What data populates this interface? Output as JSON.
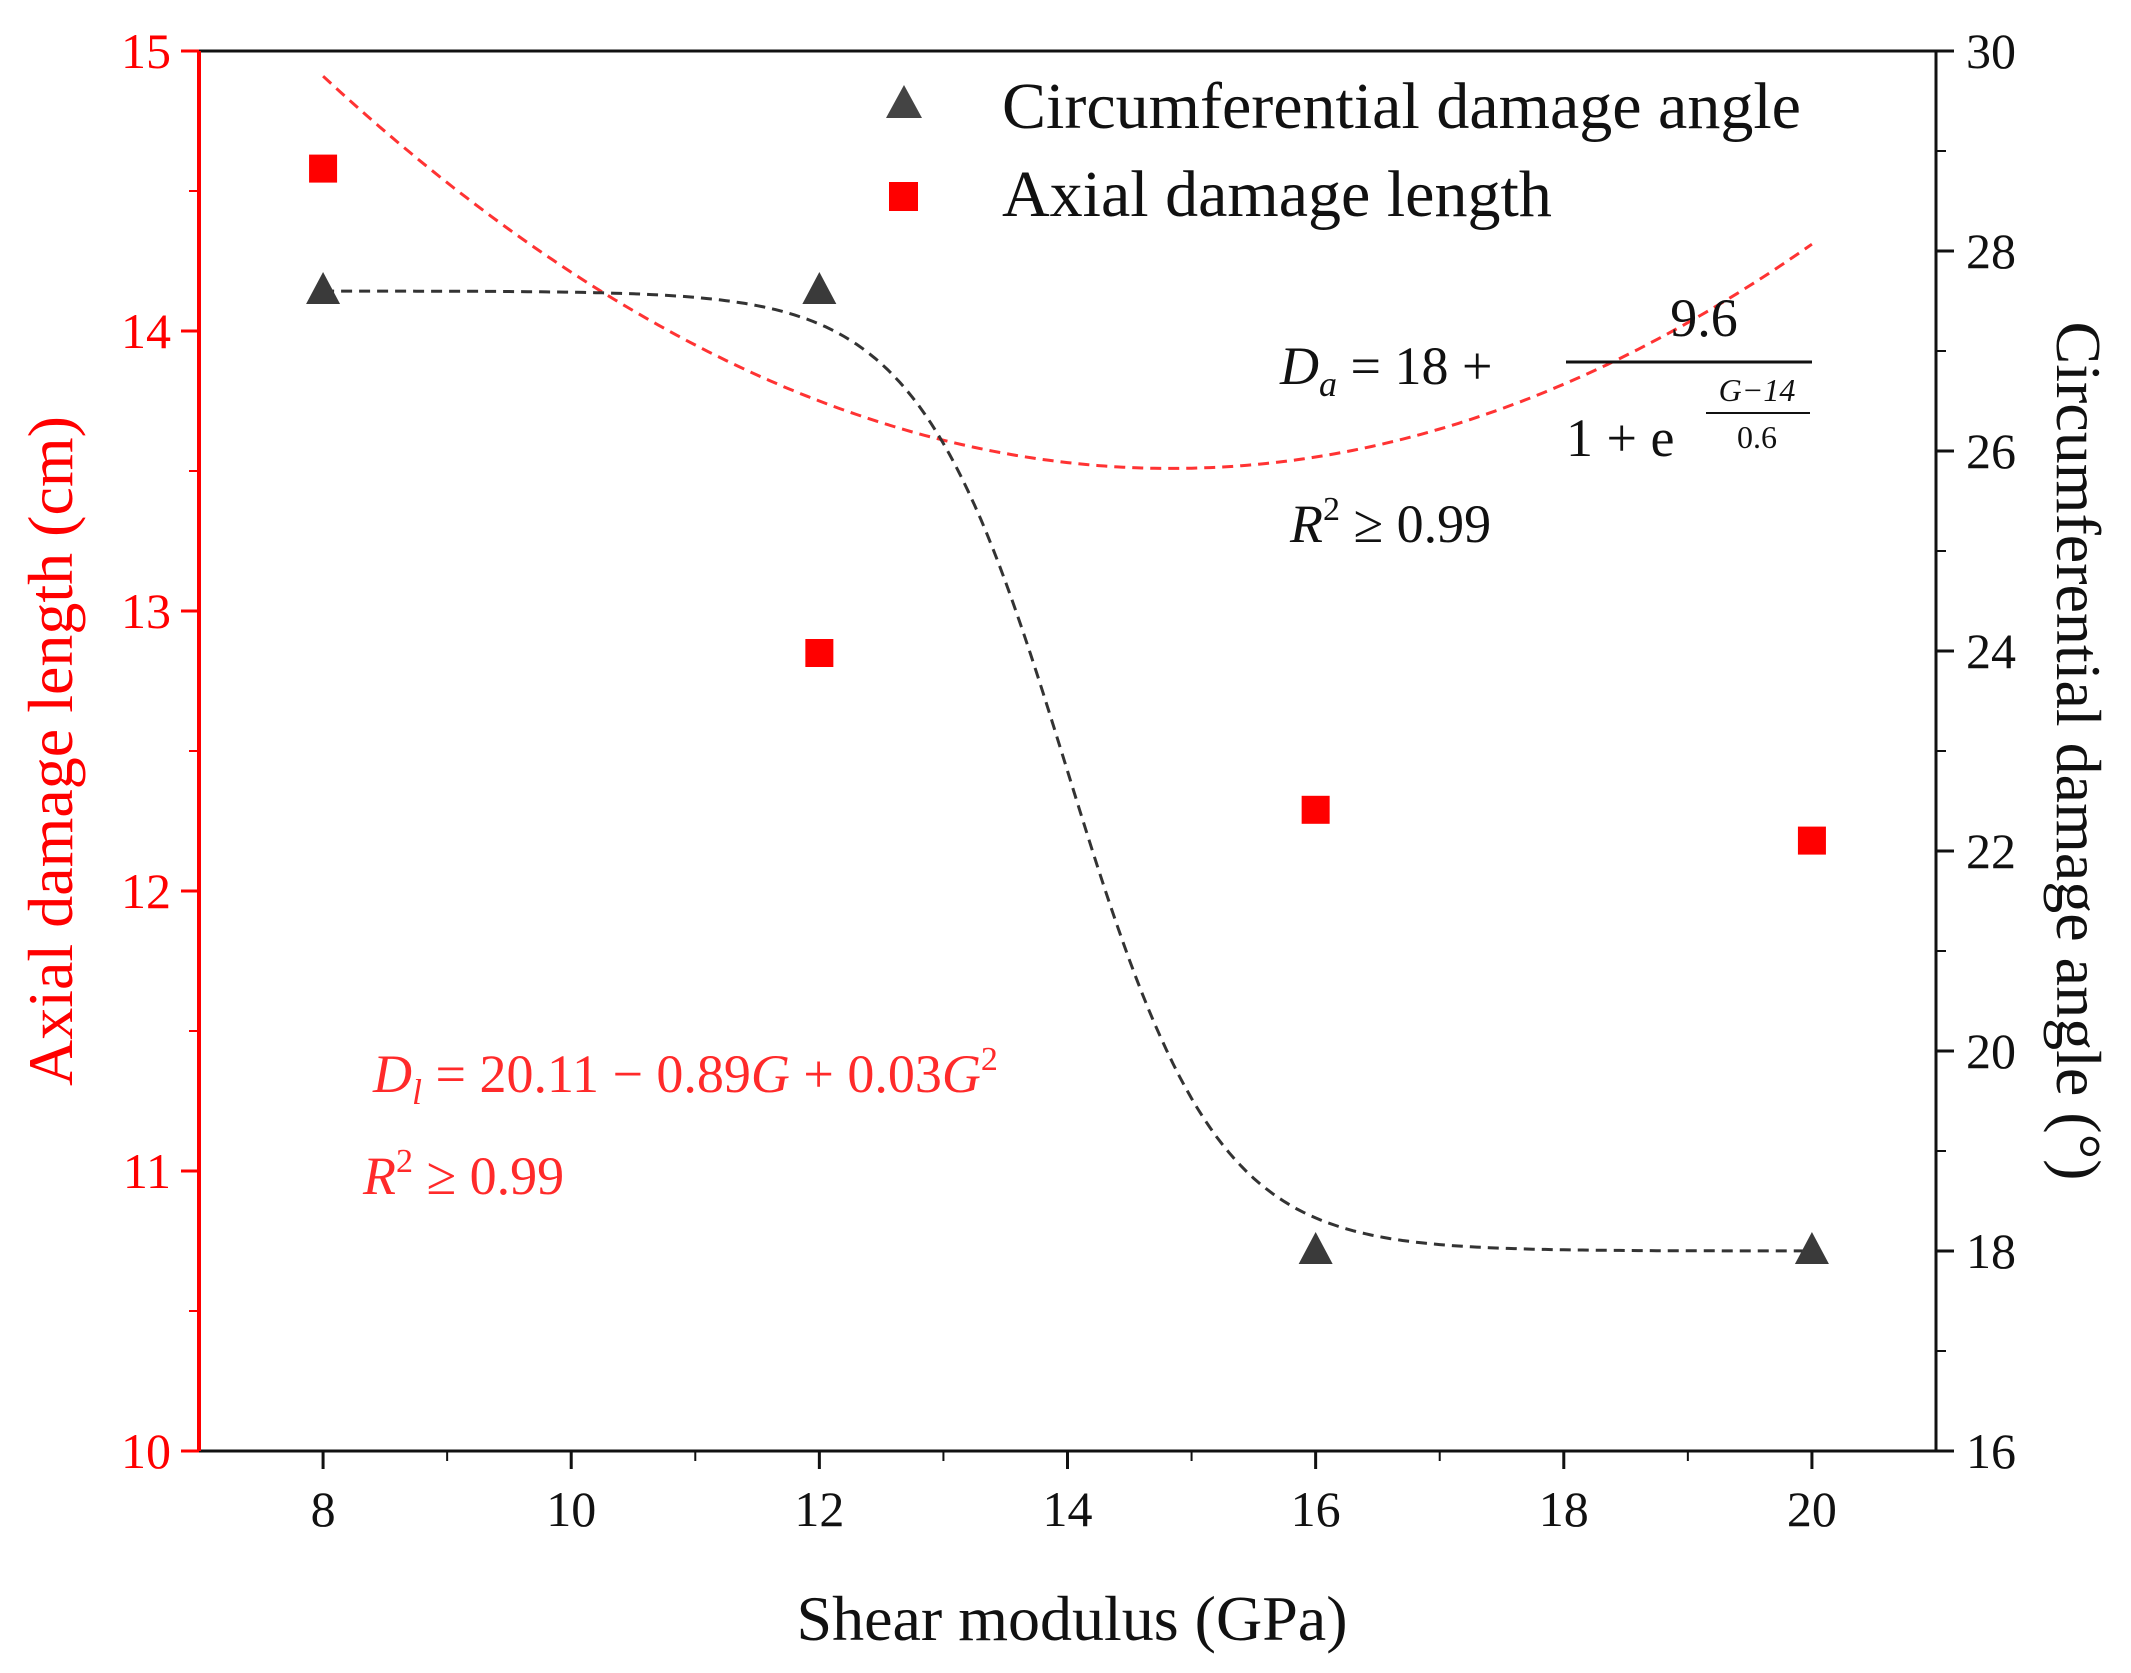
{
  "chart_data": {
    "type": "scatter",
    "title": "",
    "xlabel": "Shear modulus (GPa)",
    "ylabel_left": "Axial damage length (cm)",
    "ylabel_right": "Circumferential damage angle (°)",
    "x_ticks": [
      "8",
      "10",
      "12",
      "14",
      "16",
      "18",
      "20"
    ],
    "xlim": [
      7,
      21
    ],
    "y_left_ticks": [
      "10",
      "11",
      "12",
      "13",
      "14",
      "15"
    ],
    "y_left_lim": [
      10,
      15
    ],
    "y_right_ticks": [
      "16",
      "18",
      "20",
      "22",
      "24",
      "26",
      "28",
      "30"
    ],
    "y_right_lim": [
      16,
      30
    ],
    "series": [
      {
        "name": "Circumferential damage angle",
        "axis": "right",
        "marker": "triangle",
        "color": "#3a3a3a",
        "x": [
          8,
          12,
          16,
          20
        ],
        "values": [
          27.6,
          27.6,
          18.0,
          18.0
        ],
        "fit": {
          "kind": "sigmoid",
          "base": 18,
          "amplitude": 9.6,
          "center": 14,
          "width": 0.6
        }
      },
      {
        "name": "Axial damage length",
        "axis": "left",
        "marker": "square",
        "color": "#ff0000",
        "x": [
          8,
          12,
          16,
          20
        ],
        "values": [
          14.58,
          12.85,
          12.29,
          12.18
        ],
        "fit": {
          "kind": "quadratic",
          "c0": 20.11,
          "c1": -0.89,
          "c2": 0.03
        }
      }
    ],
    "legend_placement": "top-right",
    "annotations": {
      "angle_eq": {
        "lhs_var": "D",
        "lhs_sub": "a",
        "lhs_rest": " = 18 + ",
        "numerator": "9.6",
        "denom": "1 + e",
        "exp_num": "G−14",
        "exp_den": "0.6",
        "r2_var": "R",
        "r2_pow": "2",
        "r2_rest": " ≥ 0.99"
      },
      "length_eq": {
        "lhs_var": "D",
        "lhs_sub": "l",
        "mid": " = 20.11 − 0.89",
        "g1": "G",
        "plus": " + 0.03",
        "g2": "G",
        "pow": "2",
        "r2_var": "R",
        "r2_pow": "2",
        "r2_rest": " ≥ 0.99"
      }
    },
    "colors": {
      "left_axis": "#ff0000",
      "right_axis": "#111111",
      "fit_angle": "#333333",
      "fit_length": "#ff3333"
    }
  }
}
